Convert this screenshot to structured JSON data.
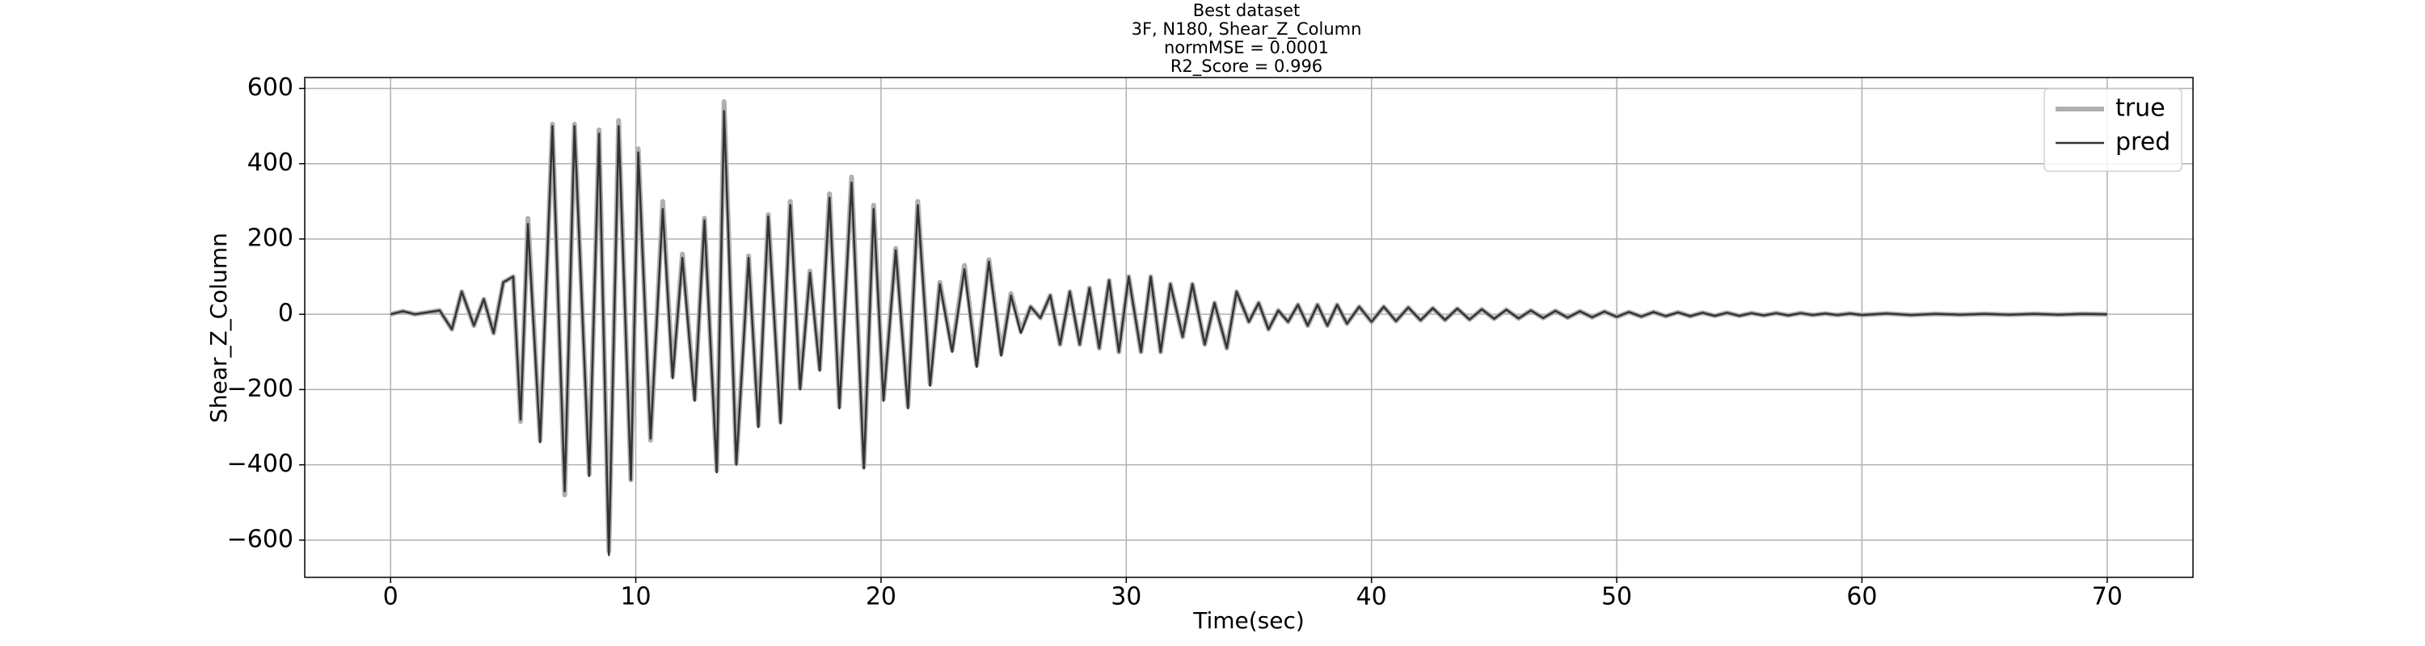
{
  "chart_data": {
    "type": "line",
    "title": "Best dataset",
    "subtitle": [
      "3F, N180, Shear_Z_Column",
      "normMSE = 0.0001",
      "R2_Score = 0.996"
    ],
    "x_label": "Time(sec)",
    "y_label": "Shear_Z_Column",
    "x": [
      0,
      0.5,
      1,
      1.5,
      2,
      2.5,
      2.9,
      3.4,
      3.8,
      4.2,
      4.6,
      5.0,
      5.3,
      5.6,
      6.1,
      6.6,
      7.1,
      7.5,
      8.1,
      8.5,
      8.9,
      9.3,
      9.8,
      10.1,
      10.6,
      11.1,
      11.5,
      11.9,
      12.4,
      12.8,
      13.3,
      13.6,
      14.1,
      14.6,
      15.0,
      15.4,
      15.9,
      16.3,
      16.7,
      17.1,
      17.5,
      17.9,
      18.3,
      18.8,
      19.3,
      19.7,
      20.1,
      20.6,
      21.1,
      21.5,
      22.0,
      22.4,
      22.9,
      23.4,
      23.9,
      24.4,
      24.9,
      25.3,
      25.7,
      26.1,
      26.5,
      26.9,
      27.3,
      27.7,
      28.1,
      28.5,
      28.9,
      29.3,
      29.7,
      30.1,
      30.6,
      31.0,
      31.4,
      31.8,
      32.3,
      32.7,
      33.2,
      33.6,
      34.1,
      34.5,
      35.0,
      35.4,
      35.8,
      36.2,
      36.6,
      37.0,
      37.4,
      37.8,
      38.2,
      38.6,
      39.0,
      39.5,
      40,
      40.5,
      41,
      41.5,
      42,
      42.5,
      43,
      43.5,
      44,
      44.5,
      45,
      45.5,
      46,
      46.5,
      47,
      47.5,
      48,
      48.5,
      49,
      49.5,
      50,
      50.5,
      51,
      51.5,
      52,
      52.5,
      53,
      53.5,
      54,
      54.5,
      55,
      55.5,
      56,
      56.5,
      57,
      57.5,
      58,
      58.5,
      59,
      59.5,
      60,
      61,
      62,
      63,
      64,
      65,
      66,
      67,
      68,
      69,
      70
    ],
    "series": [
      {
        "name": "true",
        "color": "#b0b0b0",
        "values": [
          0,
          8,
          0,
          5,
          10,
          -40,
          60,
          -30,
          40,
          -50,
          85,
          100,
          -285,
          255,
          -335,
          505,
          -480,
          505,
          -425,
          490,
          -630,
          515,
          -440,
          440,
          -335,
          300,
          -165,
          160,
          -225,
          255,
          -415,
          565,
          -395,
          155,
          -295,
          265,
          -285,
          300,
          -195,
          115,
          -145,
          320,
          -245,
          365,
          -405,
          290,
          -225,
          175,
          -245,
          300,
          -185,
          85,
          -95,
          130,
          -135,
          145,
          -105,
          55,
          -45,
          20,
          -10,
          50,
          -80,
          60,
          -80,
          70,
          -90,
          90,
          -100,
          100,
          -100,
          100,
          -100,
          80,
          -60,
          80,
          -80,
          30,
          -90,
          60,
          -20,
          30,
          -40,
          10,
          -20,
          25,
          -30,
          25,
          -30,
          25,
          -25,
          20,
          -20,
          20,
          -18,
          18,
          -16,
          16,
          -15,
          15,
          -14,
          13,
          -12,
          12,
          -11,
          10,
          -10,
          9,
          -9,
          8,
          -8,
          7,
          -7,
          6,
          -6,
          6,
          -5,
          5,
          -5,
          4,
          -4,
          4,
          -4,
          3,
          -3,
          3,
          -3,
          3,
          -2,
          2,
          -2,
          2,
          -2,
          2,
          -2,
          1,
          -1,
          1,
          -1,
          1,
          -1,
          1,
          0
        ]
      },
      {
        "name": "pred",
        "color": "#333333",
        "values": [
          0,
          8,
          0,
          5,
          10,
          -40,
          60,
          -30,
          40,
          -50,
          85,
          100,
          -280,
          240,
          -340,
          500,
          -470,
          500,
          -430,
          480,
          -640,
          500,
          -440,
          430,
          -330,
          280,
          -170,
          150,
          -230,
          250,
          -420,
          540,
          -400,
          150,
          -300,
          260,
          -290,
          290,
          -200,
          110,
          -150,
          310,
          -250,
          350,
          -410,
          280,
          -230,
          170,
          -250,
          290,
          -190,
          80,
          -100,
          120,
          -140,
          140,
          -110,
          50,
          -50,
          20,
          -10,
          50,
          -80,
          60,
          -80,
          70,
          -90,
          90,
          -100,
          100,
          -100,
          100,
          -100,
          80,
          -60,
          80,
          -80,
          30,
          -90,
          60,
          -20,
          30,
          -40,
          10,
          -20,
          25,
          -30,
          25,
          -30,
          25,
          -25,
          20,
          -20,
          20,
          -18,
          18,
          -16,
          16,
          -15,
          15,
          -14,
          13,
          -12,
          12,
          -11,
          10,
          -10,
          9,
          -9,
          8,
          -8,
          7,
          -7,
          6,
          -6,
          6,
          -5,
          5,
          -5,
          4,
          -4,
          4,
          -4,
          3,
          -3,
          3,
          -3,
          3,
          -2,
          2,
          -2,
          2,
          -2,
          2,
          -2,
          1,
          -1,
          1,
          -1,
          1,
          -1,
          1,
          0
        ]
      }
    ],
    "xlim": [
      -3.5,
      73.5
    ],
    "xticks": [
      0,
      10,
      20,
      30,
      40,
      50,
      60,
      70
    ],
    "ylim": [
      -699,
      629
    ],
    "yticks": [
      {
        "value": -600,
        "label": "−600"
      },
      {
        "value": -400,
        "label": "−400"
      },
      {
        "value": -200,
        "label": "−200"
      },
      0,
      200,
      400,
      600
    ],
    "grid": true,
    "legend": "upper right"
  }
}
